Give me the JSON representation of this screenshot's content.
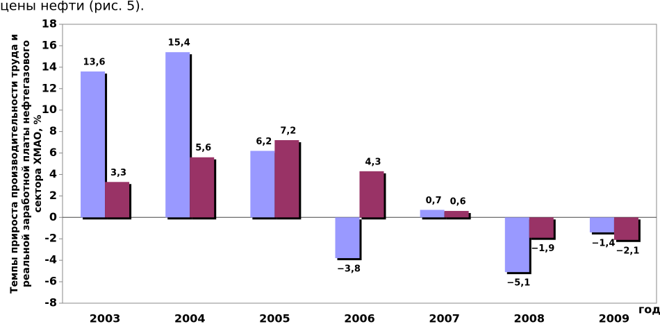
{
  "text_above": "цены нефти (рис. 5).",
  "chart_data": {
    "type": "bar",
    "ylabel": [
      "Темпы прироста производительности труда и",
      "реальной заработной платы нефтегазового",
      "сектора ХМАО, %"
    ],
    "xlabel": "год",
    "categories": [
      "2003",
      "2004",
      "2005",
      "2006",
      "2007",
      "2008",
      "2009"
    ],
    "series": [
      {
        "color": "#9999ff",
        "values": [
          13.6,
          15.4,
          6.2,
          -3.8,
          0.7,
          -5.1,
          -1.4
        ],
        "value_labels": [
          "13,6",
          "15,4",
          "6,2",
          "−3,8",
          "0,7",
          "−5,1",
          "−1,4"
        ]
      },
      {
        "color": "#993366",
        "values": [
          3.3,
          5.6,
          7.2,
          4.3,
          0.6,
          -1.9,
          -2.1
        ],
        "value_labels": [
          "3,3",
          "5,6",
          "7,2",
          "4,3",
          "0,6",
          "−1,9",
          "−2,1"
        ]
      }
    ],
    "ylim": [
      -8,
      18
    ],
    "yticks": [
      -8,
      -6,
      -4,
      -2,
      0,
      2,
      4,
      6,
      8,
      10,
      12,
      14,
      16,
      18
    ]
  }
}
